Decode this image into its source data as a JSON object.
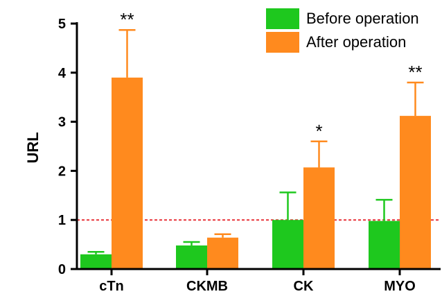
{
  "chart_data": {
    "type": "bar",
    "title": "",
    "xlabel": "",
    "ylabel": "URL",
    "ylim": [
      0,
      5
    ],
    "yticks": [
      0,
      1,
      2,
      3,
      4,
      5
    ],
    "categories": [
      "cTn",
      "CKMB",
      "CK",
      "MYO"
    ],
    "series": [
      {
        "name": "Before operation",
        "color": "#1ec81e",
        "values": [
          0.3,
          0.48,
          1.0,
          0.98
        ],
        "errors": [
          0.05,
          0.07,
          0.56,
          0.43
        ]
      },
      {
        "name": "After operation",
        "color": "#ff8a1e",
        "values": [
          3.9,
          0.64,
          2.07,
          3.12
        ],
        "errors": [
          0.97,
          0.07,
          0.53,
          0.68
        ]
      }
    ],
    "annotations": [
      "**",
      "",
      "*",
      "**"
    ],
    "reference_line": {
      "y": 1,
      "color": "#e8333a",
      "style": "dashed"
    },
    "legend": {
      "position": "top-right"
    }
  }
}
